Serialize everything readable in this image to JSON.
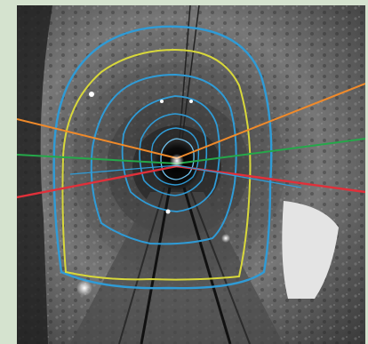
{
  "colors": {
    "frame_background": "#d5e3cf",
    "rock_dark": "#2e2e2e",
    "rock_mid": "#6b6b6b",
    "rock_light": "#a9a9a9",
    "tunnel_end": "#050505",
    "rail": "#111111",
    "contour_blue": "#2f9bd6",
    "contour_yellow": "#d8d83a",
    "line_orange": "#f08a2a",
    "line_green": "#25a84a",
    "line_red": "#e0303a",
    "white_wall": "#e6e6e6"
  },
  "icons": {
    "tunnel": "tunnel-photo",
    "lamp": "lamp-glow"
  }
}
